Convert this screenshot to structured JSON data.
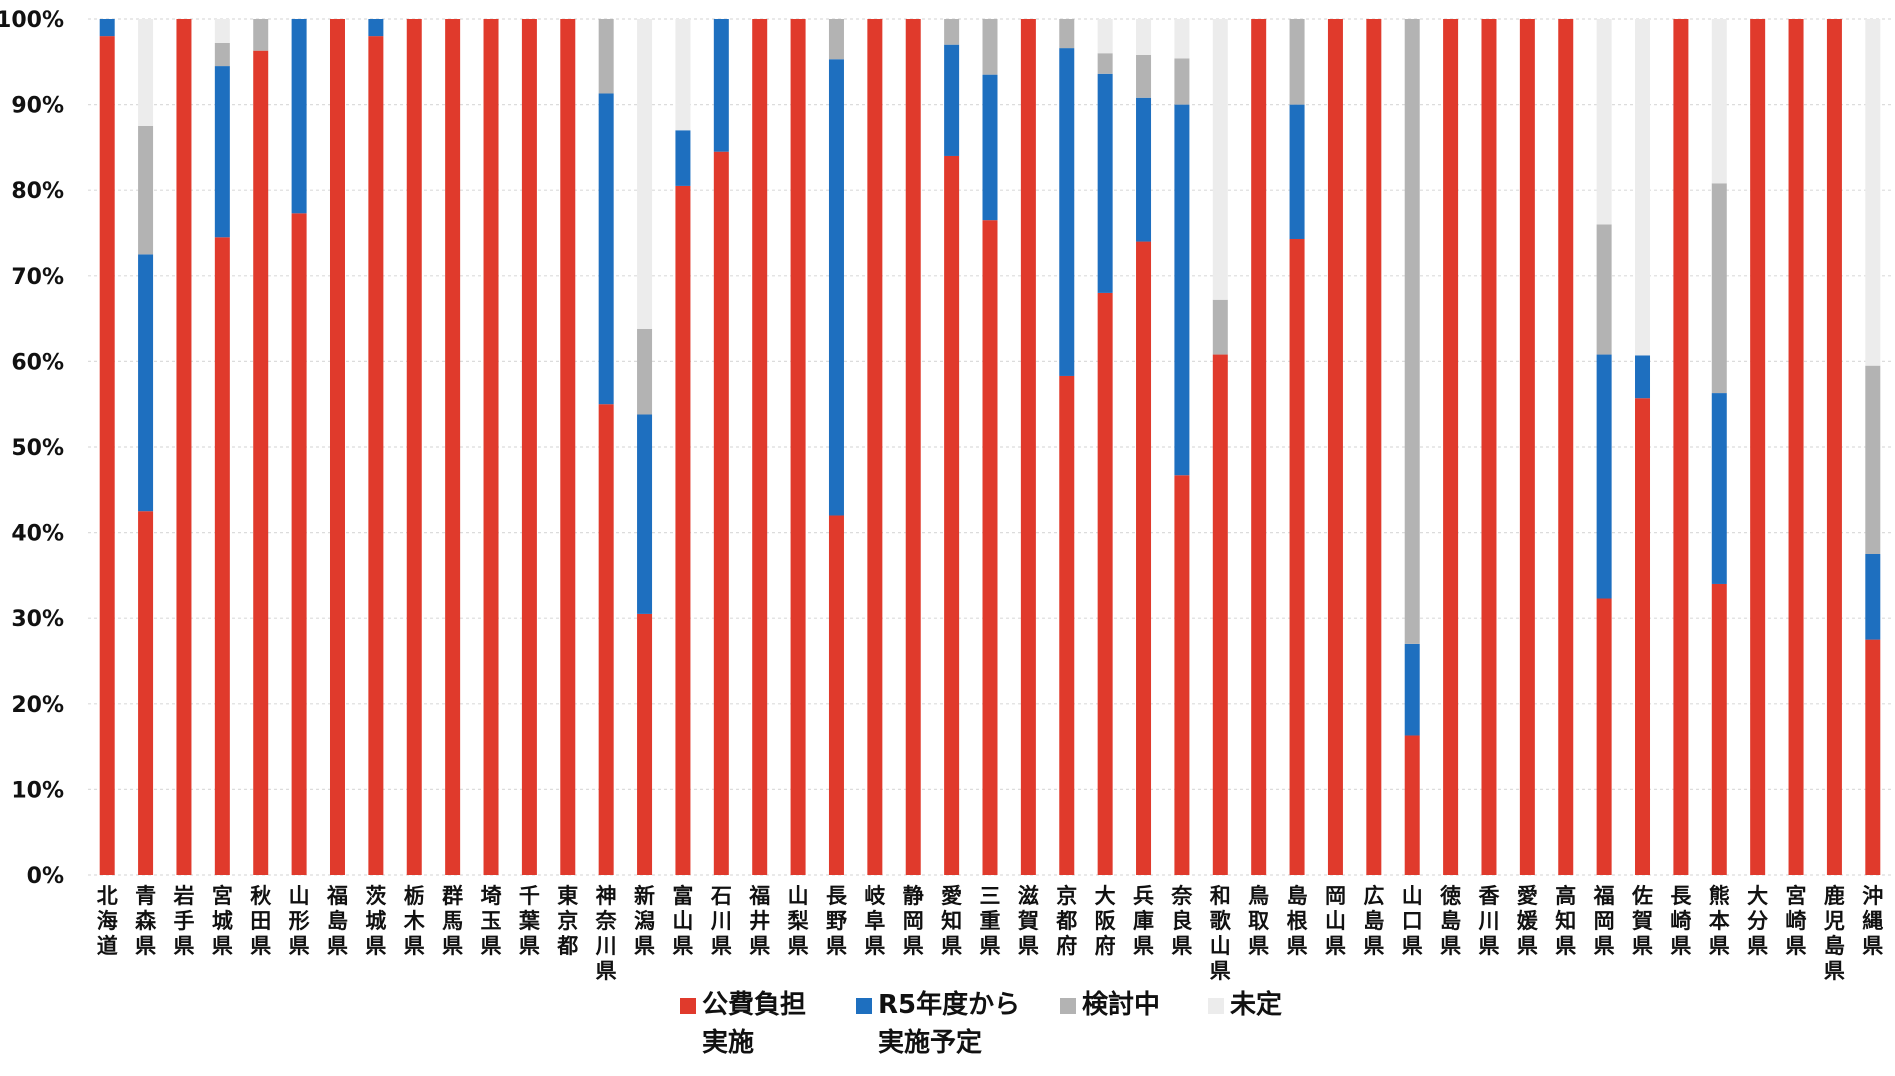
{
  "chart_data": {
    "type": "bar",
    "stacked": true,
    "ylim": [
      0,
      100
    ],
    "yticks": [
      "0%",
      "10%",
      "20%",
      "30%",
      "40%",
      "50%",
      "60%",
      "70%",
      "80%",
      "90%",
      "100%"
    ],
    "grid": true,
    "legend_position": "bottom",
    "categories": [
      "北海道",
      "青森県",
      "岩手県",
      "宮城県",
      "秋田県",
      "山形県",
      "福島県",
      "茨城県",
      "栃木県",
      "群馬県",
      "埼玉県",
      "千葉県",
      "東京都",
      "神奈川県",
      "新潟県",
      "富山県",
      "石川県",
      "福井県",
      "山梨県",
      "長野県",
      "岐阜県",
      "静岡県",
      "愛知県",
      "三重県",
      "滋賀県",
      "京都府",
      "大阪府",
      "兵庫県",
      "奈良県",
      "和歌山県",
      "鳥取県",
      "島根県",
      "岡山県",
      "広島県",
      "山口県",
      "徳島県",
      "香川県",
      "愛媛県",
      "高知県",
      "福岡県",
      "佐賀県",
      "長崎県",
      "熊本県",
      "大分県",
      "宮崎県",
      "鹿児島県",
      "沖縄県"
    ],
    "series": [
      {
        "name": "公費負担\n実施",
        "color": "#e03a2c",
        "values": [
          98,
          42.5,
          100,
          74.5,
          96.3,
          77.3,
          100,
          98,
          100,
          100,
          100,
          100,
          100,
          55,
          30.5,
          80.5,
          84.5,
          100,
          100,
          42,
          100,
          100,
          84,
          76.5,
          100,
          58.3,
          68,
          74,
          46.7,
          60.8,
          100,
          74.3,
          100,
          100,
          16.3,
          100,
          100,
          100,
          100,
          32.3,
          55.7,
          100,
          34,
          100,
          100,
          100,
          27.5
        ]
      },
      {
        "name": "R5年度から\n実施予定",
        "color": "#1e6fbf",
        "values": [
          2,
          30,
          0,
          20,
          0,
          22.7,
          0,
          2,
          0,
          0,
          0,
          0,
          0,
          36.3,
          23.3,
          6.5,
          15.5,
          0,
          0,
          53.3,
          0,
          0,
          13,
          17,
          0,
          38.3,
          25.6,
          16.8,
          43.3,
          0,
          0,
          15.7,
          0,
          0,
          10.7,
          0,
          0,
          0,
          0,
          28.5,
          5,
          0,
          22.3,
          0,
          0,
          0,
          10
        ]
      },
      {
        "name": "検討中",
        "color": "#b3b3b3",
        "values": [
          0,
          15,
          0,
          2.7,
          3.7,
          0,
          0,
          0,
          0,
          0,
          0,
          0,
          0,
          8.7,
          10,
          0,
          0,
          0,
          0,
          4.7,
          0,
          0,
          3,
          6.5,
          0,
          3.4,
          2.4,
          5,
          5.4,
          6.4,
          0,
          10,
          0,
          0,
          73,
          0,
          0,
          0,
          0,
          15.2,
          0,
          0,
          24.5,
          0,
          0,
          0,
          22
        ]
      },
      {
        "name": "未定",
        "color": "#ececec",
        "values": [
          0,
          12.5,
          0,
          2.8,
          0,
          0,
          0,
          0,
          0,
          0,
          0,
          0,
          0,
          0,
          36.2,
          13,
          0,
          0,
          0,
          0,
          0,
          0,
          0,
          0,
          0,
          0,
          4,
          4.2,
          4.6,
          32.8,
          0,
          0,
          0,
          0,
          0,
          0,
          0,
          0,
          0,
          24,
          39.3,
          0,
          19.2,
          0,
          0,
          0,
          40.5
        ]
      }
    ]
  }
}
